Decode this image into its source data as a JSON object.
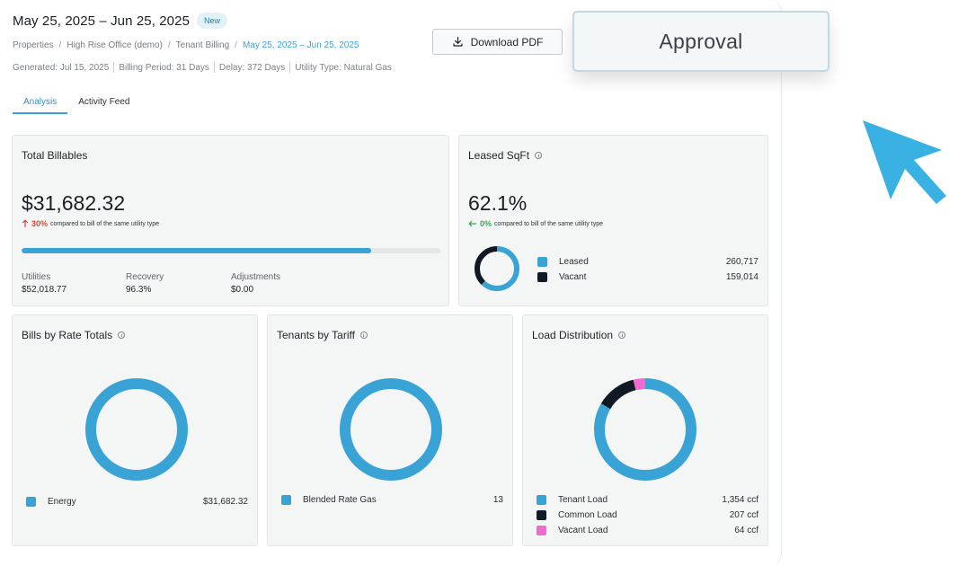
{
  "header": {
    "title": "May 25, 2025 – Jun 25, 2025",
    "badge": "New"
  },
  "breadcrumb": [
    "Properties",
    "High Rise Office (demo)",
    "Tenant Billing",
    "May 25, 2025 – Jun 25, 2025"
  ],
  "meta": {
    "generated": "Generated: Jul 15, 2025",
    "billing_period": "Billing Period: 31 Days",
    "delay": "Delay: 372 Days",
    "utility_type": "Utility Type: Natural Gas"
  },
  "actions": {
    "download": "Download PDF",
    "approval": "Approval"
  },
  "tabs": [
    "Analysis",
    "Activity Feed"
  ],
  "total_billables": {
    "title": "Total Billables",
    "value": "$31,682.32",
    "change": "30%",
    "compare_text": "compared to bill of the same utility type",
    "progress_fraction": 0.835,
    "stats": [
      {
        "label": "Utilities",
        "value": "$52,018.77"
      },
      {
        "label": "Recovery",
        "value": "96.3%"
      },
      {
        "label": "Adjustments",
        "value": "$0.00"
      }
    ]
  },
  "leased_sqft": {
    "title": "Leased SqFt",
    "value": "62.1%",
    "change": "0%",
    "compare_text": "compared to bill of the same utility type",
    "legend": [
      {
        "label": "Leased",
        "value": "260,717",
        "color": "#3aa3d6"
      },
      {
        "label": "Vacant",
        "value": "159,014",
        "color": "#111a24"
      }
    ]
  },
  "bills_by_rate": {
    "title": "Bills by Rate Totals",
    "legend": [
      {
        "label": "Energy",
        "value": "$31,682.32",
        "color": "#3aa3d6"
      }
    ]
  },
  "tenants_by_tariff": {
    "title": "Tenants by Tariff",
    "legend": [
      {
        "label": "Blended Rate Gas",
        "value": "13",
        "color": "#3aa3d6"
      }
    ]
  },
  "load_distribution": {
    "title": "Load Distribution",
    "legend": [
      {
        "label": "Tenant Load",
        "value": "1,354 ccf",
        "color": "#3aa3d6"
      },
      {
        "label": "Common Load",
        "value": "207 ccf",
        "color": "#111a24"
      },
      {
        "label": "Vacant Load",
        "value": "64 ccf",
        "color": "#f06ad0"
      }
    ]
  },
  "chart_data": [
    {
      "type": "pie",
      "categories": [
        "Leased",
        "Vacant"
      ],
      "values": [
        260717,
        159014
      ]
    },
    {
      "type": "pie",
      "categories": [
        "Energy"
      ],
      "values": [
        31682.32
      ]
    },
    {
      "type": "pie",
      "categories": [
        "Blended Rate Gas"
      ],
      "values": [
        13
      ]
    },
    {
      "type": "pie",
      "categories": [
        "Tenant Load",
        "Common Load",
        "Vacant Load"
      ],
      "values": [
        1354,
        207,
        64
      ]
    }
  ]
}
